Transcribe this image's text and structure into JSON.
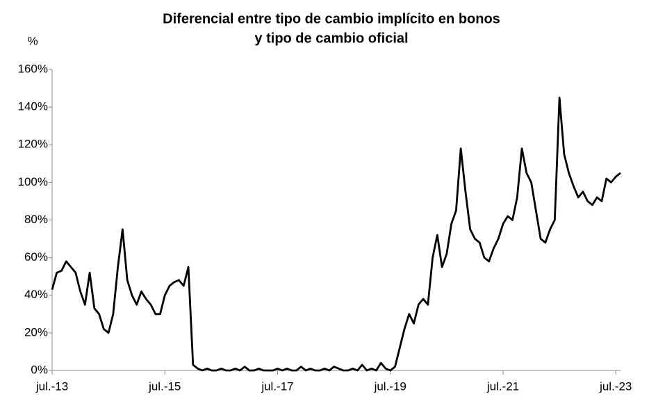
{
  "chart_data": {
    "type": "line",
    "title": [
      "Diferencial entre tipo de cambio implícito en bonos",
      "y tipo de cambio oficial"
    ],
    "y_label": "%",
    "color": "#000000",
    "x": [
      "2013-07",
      "2013-08",
      "2013-09",
      "2013-10",
      "2013-11",
      "2013-12",
      "2014-01",
      "2014-02",
      "2014-03",
      "2014-04",
      "2014-05",
      "2014-06",
      "2014-07",
      "2014-08",
      "2014-09",
      "2014-10",
      "2014-11",
      "2014-12",
      "2015-01",
      "2015-02",
      "2015-03",
      "2015-04",
      "2015-05",
      "2015-06",
      "2015-07",
      "2015-08",
      "2015-09",
      "2015-10",
      "2015-11",
      "2015-12",
      "2016-01",
      "2016-02",
      "2016-03",
      "2016-04",
      "2016-05",
      "2016-06",
      "2016-07",
      "2016-08",
      "2016-09",
      "2016-10",
      "2016-11",
      "2016-12",
      "2017-01",
      "2017-02",
      "2017-03",
      "2017-04",
      "2017-05",
      "2017-06",
      "2017-07",
      "2017-08",
      "2017-09",
      "2017-10",
      "2017-11",
      "2017-12",
      "2018-01",
      "2018-02",
      "2018-03",
      "2018-04",
      "2018-05",
      "2018-06",
      "2018-07",
      "2018-08",
      "2018-09",
      "2018-10",
      "2018-11",
      "2018-12",
      "2019-01",
      "2019-02",
      "2019-03",
      "2019-04",
      "2019-05",
      "2019-06",
      "2019-07",
      "2019-08",
      "2019-09",
      "2019-10",
      "2019-11",
      "2019-12",
      "2020-01",
      "2020-02",
      "2020-03",
      "2020-04",
      "2020-05",
      "2020-06",
      "2020-07",
      "2020-08",
      "2020-09",
      "2020-10",
      "2020-11",
      "2020-12",
      "2021-01",
      "2021-02",
      "2021-03",
      "2021-04",
      "2021-05",
      "2021-06",
      "2021-07",
      "2021-08",
      "2021-09",
      "2021-10",
      "2021-11",
      "2021-12",
      "2022-01",
      "2022-02",
      "2022-03",
      "2022-04",
      "2022-05",
      "2022-06",
      "2022-07",
      "2022-08",
      "2022-09",
      "2022-10",
      "2022-11",
      "2022-12",
      "2023-01",
      "2023-02",
      "2023-03",
      "2023-04",
      "2023-05",
      "2023-06",
      "2023-07",
      "2023-08"
    ],
    "values": [
      43,
      52,
      53,
      58,
      55,
      52,
      42,
      35,
      52,
      33,
      30,
      22,
      20,
      30,
      55,
      75,
      48,
      40,
      35,
      42,
      38,
      35,
      30,
      30,
      40,
      45,
      47,
      48,
      45,
      55,
      3,
      1,
      0,
      1,
      0,
      0,
      1,
      0,
      0,
      1,
      0,
      2,
      0,
      0,
      1,
      0,
      0,
      0,
      1,
      0,
      1,
      0,
      0,
      2,
      0,
      1,
      0,
      0,
      1,
      0,
      2,
      1,
      0,
      0,
      1,
      0,
      3,
      0,
      1,
      0,
      4,
      1,
      0,
      2,
      12,
      22,
      30,
      25,
      35,
      38,
      35,
      60,
      72,
      55,
      62,
      78,
      85,
      118,
      95,
      75,
      70,
      68,
      60,
      58,
      65,
      70,
      78,
      82,
      80,
      92,
      118,
      105,
      100,
      85,
      70,
      68,
      75,
      80,
      145,
      115,
      105,
      98,
      92,
      95,
      90,
      88,
      92,
      90,
      102,
      100,
      103,
      105
    ],
    "xlim": [
      "2013-07",
      "2023-08"
    ],
    "xticks": [
      {
        "value": "2013-07",
        "label": "jul.-13"
      },
      {
        "value": "2015-07",
        "label": "jul.-15"
      },
      {
        "value": "2017-07",
        "label": "jul.-17"
      },
      {
        "value": "2019-07",
        "label": "jul.-19"
      },
      {
        "value": "2021-07",
        "label": "jul.-21"
      },
      {
        "value": "2023-07",
        "label": "jul.-23"
      }
    ],
    "ylim": [
      0,
      160
    ],
    "yticks": [
      {
        "value": 0,
        "label": "0%"
      },
      {
        "value": 20,
        "label": "20%"
      },
      {
        "value": 40,
        "label": "40%"
      },
      {
        "value": 60,
        "label": "60%"
      },
      {
        "value": 80,
        "label": "80%"
      },
      {
        "value": 100,
        "label": "100%"
      },
      {
        "value": 120,
        "label": "120%"
      },
      {
        "value": 140,
        "label": "140%"
      },
      {
        "value": 160,
        "label": "160%"
      }
    ]
  }
}
